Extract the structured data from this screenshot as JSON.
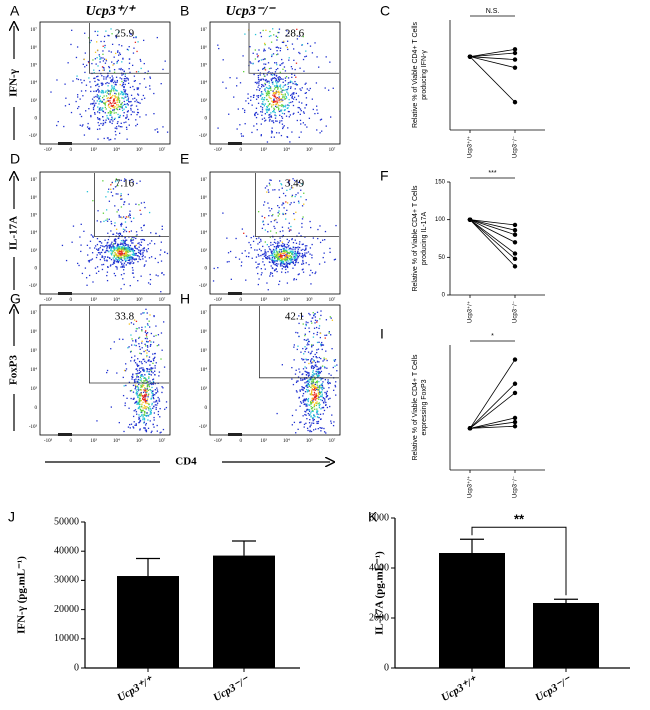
{
  "chart_data": [
    {
      "type": "flow",
      "label": "A",
      "title": "Ucp3⁺/⁺",
      "ylabel": "IFN-γ",
      "gate_label": "25.9",
      "y_tick_labels": [
        "10⁷",
        "10⁶",
        "10⁵",
        "10⁴",
        "10³",
        "0",
        "-10³"
      ],
      "x_tick_labels": [
        "-10³",
        "0",
        "10³",
        "10⁴",
        "10⁵",
        "10⁷"
      ]
    },
    {
      "type": "flow",
      "label": "B",
      "title": "Ucp3⁻/⁻",
      "gate_label": "28.6",
      "y_tick_labels": [
        "10⁷",
        "10⁶",
        "10⁵",
        "10⁴",
        "10³",
        "0",
        "-10³"
      ],
      "x_tick_labels": [
        "-10³",
        "0",
        "10³",
        "10⁴",
        "10⁵",
        "10⁷"
      ]
    },
    {
      "type": "paired",
      "label": "C",
      "categories": [
        "Ucp3⁺/⁺",
        "Ucp3⁻/⁻"
      ],
      "ylabel": [
        "Relative % of Viable CD4+ T Cells",
        "producing IFN-γ"
      ],
      "significance": "N.S.",
      "ylim": [
        0,
        150
      ],
      "color": "#000000",
      "series": [
        {
          "values": [
            100,
            110
          ]
        },
        {
          "values": [
            100,
            105
          ]
        },
        {
          "values": [
            100,
            96
          ]
        },
        {
          "values": [
            100,
            85
          ]
        },
        {
          "values": [
            100,
            38
          ]
        }
      ]
    },
    {
      "type": "flow",
      "label": "D",
      "ylabel": "IL-17A",
      "gate_label": "7.16",
      "y_tick_labels": [
        "10⁷",
        "10⁶",
        "10⁵",
        "10⁴",
        "10³",
        "0",
        "-10³"
      ],
      "x_tick_labels": [
        "-10³",
        "0",
        "10³",
        "10⁴",
        "10⁵",
        "10⁷"
      ]
    },
    {
      "type": "flow",
      "label": "E",
      "gate_label": "3.49",
      "y_tick_labels": [
        "10⁷",
        "10⁶",
        "10⁵",
        "10⁴",
        "10³",
        "0",
        "-10³"
      ],
      "x_tick_labels": [
        "-10³",
        "0",
        "10³",
        "10⁴",
        "10⁵",
        "10⁷"
      ]
    },
    {
      "type": "paired",
      "label": "F",
      "categories": [
        "Ucp3⁺/⁺",
        "Ucp3⁻/⁻"
      ],
      "ylabel": [
        "Relative % of Viable CD4+ T Cells",
        "producing IL-17A"
      ],
      "significance": "***",
      "ylim": [
        0,
        150
      ],
      "yticks": [
        0,
        50,
        100,
        150
      ],
      "color": "#000000",
      "series": [
        {
          "values": [
            100,
            93
          ]
        },
        {
          "values": [
            100,
            86
          ]
        },
        {
          "values": [
            100,
            80
          ]
        },
        {
          "values": [
            100,
            70
          ]
        },
        {
          "values": [
            100,
            55
          ]
        },
        {
          "values": [
            100,
            48
          ]
        },
        {
          "values": [
            100,
            38
          ]
        }
      ]
    },
    {
      "type": "flow",
      "label": "G",
      "ylabel": "FoxP3",
      "gate_label": "33.8",
      "y_tick_labels": [
        "10⁷",
        "10⁶",
        "10⁵",
        "10⁴",
        "10³",
        "0",
        "-10³"
      ],
      "x_tick_labels": [
        "-10³",
        "0",
        "10³",
        "10⁴",
        "10⁵",
        "10⁷"
      ]
    },
    {
      "type": "flow",
      "label": "H",
      "xlabel": "CD4",
      "gate_label": "42.1",
      "y_tick_labels": [
        "10⁷",
        "10⁶",
        "10⁵",
        "10⁴",
        "10³",
        "0",
        "-10³"
      ],
      "x_tick_labels": [
        "-10³",
        "0",
        "10³",
        "10⁴",
        "10⁵",
        "10⁷"
      ]
    },
    {
      "type": "paired",
      "label": "I",
      "categories": [
        "Ucp3⁺/⁺",
        "Ucp3⁻/⁻"
      ],
      "ylabel": [
        "Relative % of Viable CD4+ T Cells",
        "expressing FoxP3"
      ],
      "significance": "*",
      "ylim": [
        0,
        300
      ],
      "color": "#000000",
      "series": [
        {
          "values": [
            100,
            265
          ]
        },
        {
          "values": [
            100,
            207
          ]
        },
        {
          "values": [
            100,
            185
          ]
        },
        {
          "values": [
            100,
            125
          ]
        },
        {
          "values": [
            100,
            115
          ]
        },
        {
          "values": [
            100,
            105
          ]
        }
      ]
    },
    {
      "type": "bar",
      "label": "J",
      "categories": [
        "Ucp3⁺/⁺",
        "Ucp3⁻/⁻"
      ],
      "values": [
        31500,
        38500
      ],
      "errors": [
        6000,
        5000
      ],
      "ylabel": "IFN-γ (pg.mL⁻¹)",
      "ylim": [
        0,
        50000
      ],
      "yticks": [
        0,
        10000,
        20000,
        30000,
        40000,
        50000
      ],
      "color": "#000000"
    },
    {
      "type": "bar",
      "label": "K",
      "categories": [
        "Ucp3⁺/⁺",
        "Ucp3⁻/⁻"
      ],
      "values": [
        4600,
        2600
      ],
      "errors": [
        550,
        150
      ],
      "ylabel": "IL-17A (pg.mL⁻¹)",
      "significance": "**",
      "ylim": [
        0,
        6000
      ],
      "yticks": [
        0,
        2000,
        4000,
        6000
      ],
      "color": "#000000"
    }
  ]
}
